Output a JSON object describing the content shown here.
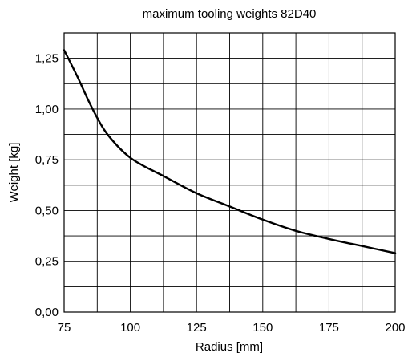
{
  "chart_data": {
    "type": "line",
    "title": "maximum tooling weights 82D40",
    "xlabel": "Radius [mm]",
    "ylabel": "Weight [kg]",
    "xlim": [
      75,
      200
    ],
    "ylim": [
      0,
      1.375
    ],
    "x_ticks": [
      75,
      100,
      125,
      150,
      175,
      200
    ],
    "x_tick_labels": [
      "75",
      "100",
      "125",
      "150",
      "175",
      "200"
    ],
    "y_ticks": [
      0,
      0.25,
      0.5,
      0.75,
      1.0,
      1.25
    ],
    "y_tick_labels": [
      "0,00",
      "0,25",
      "0,50",
      "0,75",
      "1,00",
      "1,25"
    ],
    "grid": true,
    "x_gridlines": [
      75,
      87.5,
      100,
      112.5,
      125,
      137.5,
      150,
      162.5,
      175,
      187.5,
      200
    ],
    "y_gridlines": [
      0,
      0.125,
      0.25,
      0.375,
      0.5,
      0.625,
      0.75,
      0.875,
      1.0,
      1.125,
      1.25,
      1.375
    ],
    "series": [
      {
        "x": [
          75,
          80,
          85,
          90,
          95,
          100,
          105,
          112.5,
          125,
          137.5,
          150,
          162.5,
          175,
          187.5,
          200
        ],
        "y": [
          1.29,
          1.16,
          1.02,
          0.9,
          0.82,
          0.76,
          0.72,
          0.67,
          0.585,
          0.52,
          0.455,
          0.4,
          0.36,
          0.325,
          0.29
        ]
      }
    ]
  }
}
